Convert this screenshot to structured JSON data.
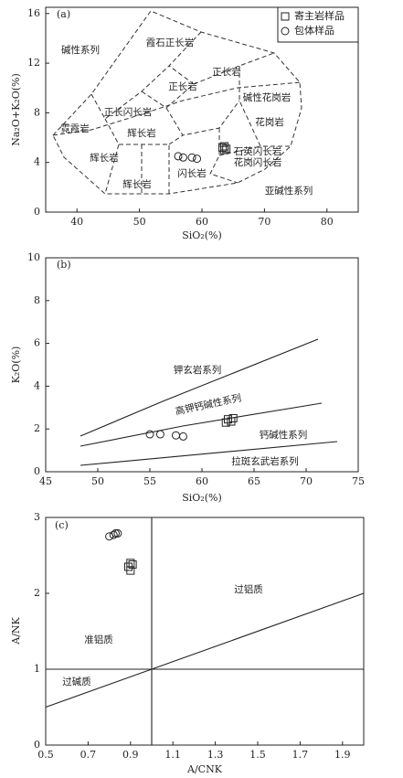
{
  "chart_data": [
    {
      "type": "scatter",
      "panel": "(a)",
      "x_label": "SiO₂(%)",
      "y_label": "Na₂O+K₂O(%)",
      "xlim": [
        35,
        85
      ],
      "ylim": [
        0,
        16.5
      ],
      "xticks": [
        40,
        50,
        60,
        70,
        80
      ],
      "yticks": [
        0,
        4,
        8,
        12,
        16
      ],
      "series": [
        {
          "name": "寄主岩样品",
          "marker": "square",
          "color": "#222",
          "x": [
            63.3,
            63.6,
            63.9,
            63.6
          ],
          "values": [
            5.2,
            5.0,
            5.1,
            5.3
          ]
        },
        {
          "name": "包体样品",
          "marker": "circle",
          "color": "#222",
          "x": [
            56.2,
            57.0,
            58.4,
            59.2
          ],
          "values": [
            4.5,
            4.4,
            4.4,
            4.3
          ]
        }
      ],
      "annotations": [
        "碱性系列",
        "霓霞岩",
        "霞石正长岩",
        "正长岩",
        "正长岩",
        "碱性花岗岩",
        "正长闪长岩",
        "花岗岩",
        "辉长岩",
        "辉长岩",
        "辉长岩",
        "闪长岩",
        "石英闪长岩",
        "花岗闪长岩",
        "亚碱性系列"
      ]
    },
    {
      "type": "scatter",
      "panel": "(b)",
      "x_label": "SiO₂(%)",
      "y_label": "K₂O(%)",
      "xlim": [
        45,
        75
      ],
      "ylim": [
        0,
        10
      ],
      "xticks": [
        45,
        50,
        55,
        60,
        65,
        70,
        75
      ],
      "yticks": [
        0,
        2,
        4,
        6,
        8,
        10
      ],
      "series": [
        {
          "marker": "square",
          "color": "#222",
          "x": [
            62.3,
            62.5,
            62.8,
            63.0
          ],
          "values": [
            2.3,
            2.45,
            2.35,
            2.5
          ]
        },
        {
          "marker": "circle",
          "color": "#222",
          "x": [
            55.0,
            56.0,
            57.5,
            58.2
          ],
          "values": [
            1.75,
            1.75,
            1.7,
            1.65
          ]
        }
      ],
      "annotations": [
        "钾玄岩系列",
        "高钾钙碱性系列",
        "钙碱性系列",
        "拉斑玄武岩系列"
      ]
    },
    {
      "type": "scatter",
      "panel": "(c)",
      "x_label": "A/CNK",
      "y_label": "A/NK",
      "xlim": [
        0.5,
        2.0
      ],
      "ylim": [
        0,
        3
      ],
      "xticks": [
        0.5,
        0.7,
        0.9,
        1.1,
        1.3,
        1.5,
        1.7,
        1.9
      ],
      "yticks": [
        0,
        1,
        2,
        3
      ],
      "series": [
        {
          "marker": "square",
          "color": "#222",
          "x": [
            0.89,
            0.9,
            0.9,
            0.91
          ],
          "values": [
            2.35,
            2.4,
            2.3,
            2.38
          ]
        },
        {
          "marker": "circle",
          "color": "#222",
          "x": [
            0.8,
            0.82,
            0.83,
            0.84
          ],
          "values": [
            2.75,
            2.77,
            2.79,
            2.79
          ]
        }
      ],
      "annotations": [
        "过铝质",
        "准铝质",
        "过碱质"
      ]
    }
  ]
}
